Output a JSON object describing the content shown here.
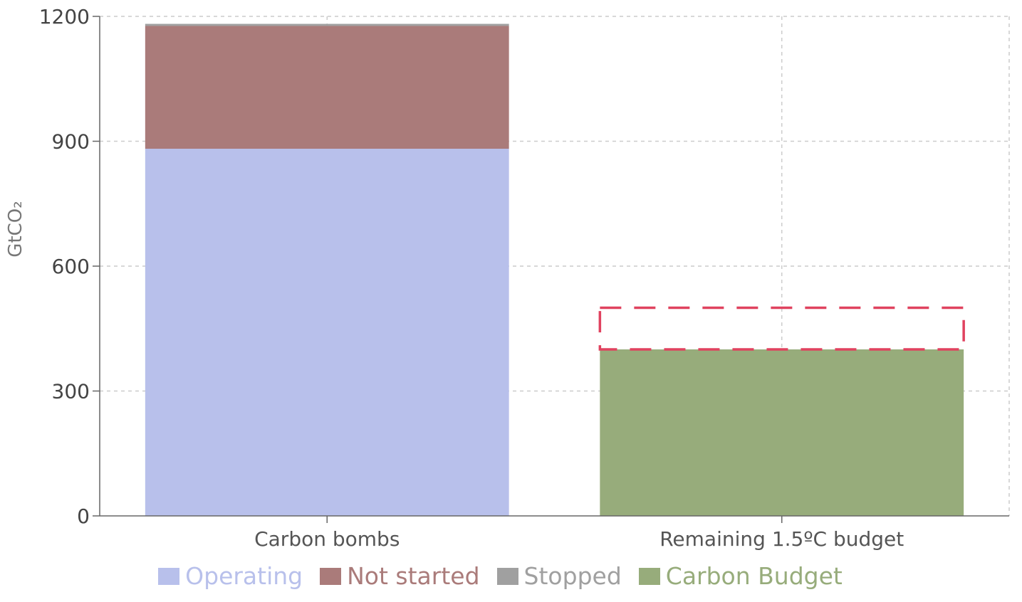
{
  "chart_data": {
    "type": "bar",
    "stacked": true,
    "categories": [
      "Carbon bombs",
      "Remaining 1.5ºC budget"
    ],
    "ylabel": "GtCO₂",
    "ylim": [
      0,
      1200
    ],
    "yticks": [
      "0",
      "300",
      "600",
      "900",
      "1200"
    ],
    "grid": true,
    "legend_position": "bottom",
    "series": [
      {
        "name": "Operating",
        "color": "#b8c0eb",
        "values": [
          882,
          0
        ]
      },
      {
        "name": "Not started",
        "color": "#aa7b7a",
        "values": [
          295,
          0
        ]
      },
      {
        "name": "Stopped",
        "color": "#a0a0a0",
        "values": [
          5,
          0
        ]
      },
      {
        "name": "Carbon Budget",
        "color": "#97ac7b",
        "values": [
          0,
          400
        ]
      }
    ],
    "annotation": {
      "type": "dashed-outline",
      "category": "Remaining 1.5ºC budget",
      "y0": 400,
      "y1": 500,
      "color": "#e0425f"
    }
  }
}
